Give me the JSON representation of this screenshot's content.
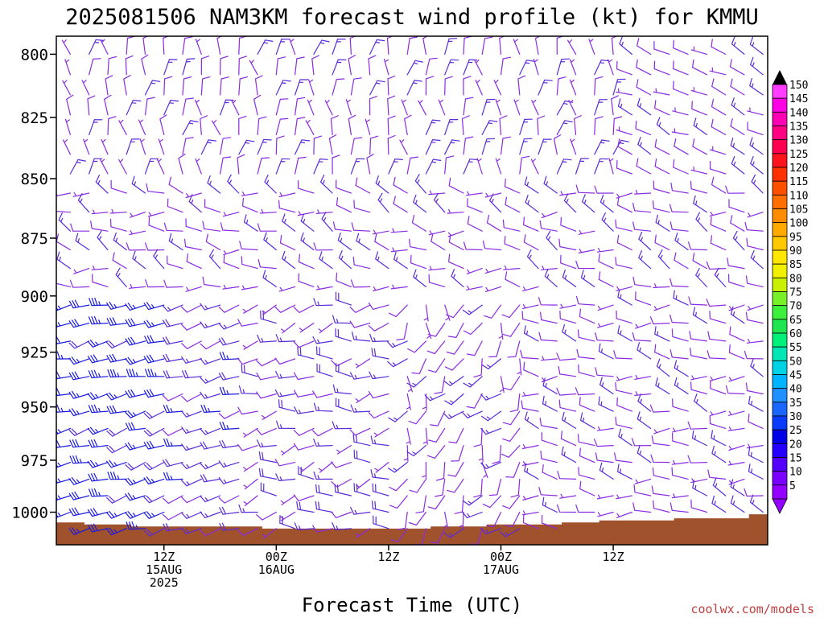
{
  "title": "2025081506 NAM3KM forecast wind profile (kt) for KMMU",
  "credit": "coolwx.com/models",
  "colors": {
    "barb_light": "#8a2be2",
    "barb_medium": "#5a2bd8",
    "barb_strong": "#1a1ae0",
    "terrain": "#a0522d",
    "frame": "#000000"
  },
  "chart_data": {
    "type": "wind-barb-profile",
    "xlabel": "Forecast Time (UTC)",
    "ylabel": "",
    "units": "kt",
    "y_scale": "log-pressure",
    "ylim": [
      1016,
      793
    ],
    "xlim_hours": [
      -5.5,
      70.5
    ],
    "y_ticks": [
      "800",
      "825",
      "850",
      "875",
      "900",
      "925",
      "950",
      "975",
      "1000"
    ],
    "x_ticks": [
      {
        "hour": 6,
        "lines": [
          "12Z",
          "15AUG",
          "2025"
        ]
      },
      {
        "hour": 18,
        "lines": [
          "00Z",
          "16AUG"
        ]
      },
      {
        "hour": 30,
        "lines": [
          "12Z"
        ]
      },
      {
        "hour": 42,
        "lines": [
          "00Z",
          "17AUG"
        ]
      },
      {
        "hour": 54,
        "lines": [
          "12Z"
        ]
      }
    ],
    "colorbar": {
      "levels": [
        "5",
        "10",
        "15",
        "20",
        "25",
        "30",
        "35",
        "40",
        "45",
        "50",
        "55",
        "60",
        "65",
        "70",
        "75",
        "80",
        "85",
        "90",
        "95",
        "100",
        "105",
        "110",
        "115",
        "120",
        "125",
        "130",
        "135",
        "140",
        "145",
        "150"
      ],
      "colors": [
        "#9400ff",
        "#7a00ff",
        "#5500ff",
        "#2400ff",
        "#0000e6",
        "#0a3cff",
        "#1a66ff",
        "#1e90ff",
        "#00b4ff",
        "#00d2e6",
        "#00e6b4",
        "#00f07a",
        "#1ee650",
        "#3cf03c",
        "#78f028",
        "#c8f000",
        "#f0f000",
        "#ffe600",
        "#ffc800",
        "#ffaa00",
        "#ff8c00",
        "#ff6e00",
        "#ff5000",
        "#ff3200",
        "#ff141e",
        "#ff0050",
        "#ff0082",
        "#ff00b4",
        "#ff00e6",
        "#ff3cff"
      ]
    },
    "pressure_levels": [
      800,
      808,
      816,
      824,
      832,
      840,
      848,
      856,
      864,
      872,
      880,
      888,
      896,
      904,
      912,
      920,
      928,
      936,
      944,
      952,
      960,
      968,
      976,
      984,
      992,
      1000,
      1008
    ],
    "hours": [
      -4,
      -2,
      0,
      2,
      4,
      6,
      8,
      10,
      12,
      14,
      16,
      18,
      20,
      22,
      24,
      26,
      28,
      30,
      32,
      34,
      36,
      38,
      40,
      42,
      44,
      46,
      48,
      50,
      52,
      54,
      56,
      58,
      60,
      62,
      64,
      66,
      68,
      70
    ],
    "surface_pressure": [
      {
        "hour": -5.5,
        "p": 1005
      },
      {
        "hour": -2.5,
        "p": 1006
      },
      {
        "hour": 2.5,
        "p": 1007
      },
      {
        "hour": 10.5,
        "p": 1007
      },
      {
        "hour": 16.5,
        "p": 1008
      },
      {
        "hour": 22.5,
        "p": 1008
      },
      {
        "hour": 28.5,
        "p": 1008
      },
      {
        "hour": 34.5,
        "p": 1007
      },
      {
        "hour": 40.5,
        "p": 1006
      },
      {
        "hour": 48.5,
        "p": 1005
      },
      {
        "hour": 52.5,
        "p": 1004
      },
      {
        "hour": 60.5,
        "p": 1003
      },
      {
        "hour": 68.5,
        "p": 1001
      },
      {
        "hour": 70.5,
        "p": 1001
      }
    ]
  }
}
